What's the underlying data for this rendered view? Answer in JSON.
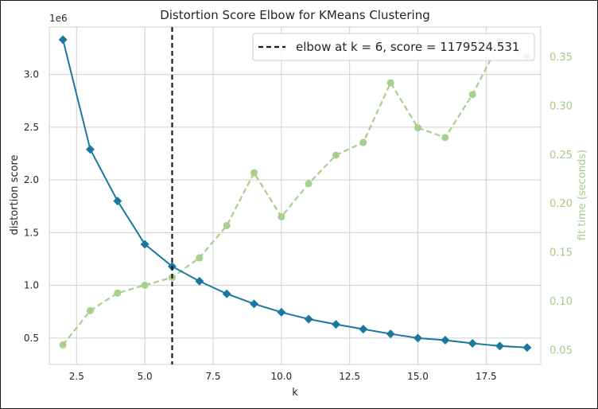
{
  "chart_data": {
    "type": "line",
    "title": "Distortion Score Elbow for KMeans Clustering",
    "xlabel": "k",
    "ylabel": "distortion score",
    "y2label": "fit time (seconds)",
    "y_offset_label": "1e6",
    "legend_text": "elbow at k = 6, score = 1179524.531",
    "legend_position": "top-right",
    "grid": true,
    "xlim": [
      1.5,
      19.5
    ],
    "ylim": [
      250000,
      3450000
    ],
    "y2lim": [
      0.035,
      0.38
    ],
    "x_ticks": [
      2.5,
      5.0,
      7.5,
      10.0,
      12.5,
      15.0,
      17.5
    ],
    "x_tick_labels": [
      "2.5",
      "5.0",
      "7.5",
      "10.0",
      "12.5",
      "15.0",
      "17.5"
    ],
    "y_ticks": [
      500000,
      1000000,
      1500000,
      2000000,
      2500000,
      3000000
    ],
    "y_tick_labels": [
      "0.5",
      "1.0",
      "1.5",
      "2.0",
      "2.5",
      "3.0"
    ],
    "y2_ticks": [
      0.05,
      0.1,
      0.15,
      0.2,
      0.25,
      0.3,
      0.35
    ],
    "y2_tick_labels": [
      "0.05",
      "0.10",
      "0.15",
      "0.20",
      "0.25",
      "0.30",
      "0.35"
    ],
    "x": [
      2,
      3,
      4,
      5,
      6,
      7,
      8,
      9,
      10,
      11,
      12,
      13,
      14,
      15,
      16,
      17,
      18,
      19
    ],
    "elbow_k": 6,
    "series": [
      {
        "axis": "left",
        "color": "#1a78a0",
        "marker": "diamond",
        "values": [
          3330000,
          2290000,
          1800000,
          1390000,
          1179524.531,
          1040000,
          920000,
          825000,
          745000,
          680000,
          630000,
          585000,
          540000,
          500000,
          480000,
          450000,
          425000,
          410000
        ]
      },
      {
        "axis": "right",
        "color": "#a8cf8c",
        "marker": "circle",
        "dashed": true,
        "values": [
          0.055,
          0.09,
          0.108,
          0.116,
          0.124,
          0.144,
          0.177,
          0.231,
          0.186,
          0.22,
          0.249,
          0.262,
          0.323,
          0.277,
          0.267,
          0.311,
          0.365,
          0.35
        ]
      }
    ],
    "colors": {
      "distortion": "#1a78a0",
      "fit_time": "#a8cf8c",
      "fit_time_text": "#a8c98a",
      "elbow": "#1a1a1a",
      "grid": "#d0d0d0"
    }
  }
}
